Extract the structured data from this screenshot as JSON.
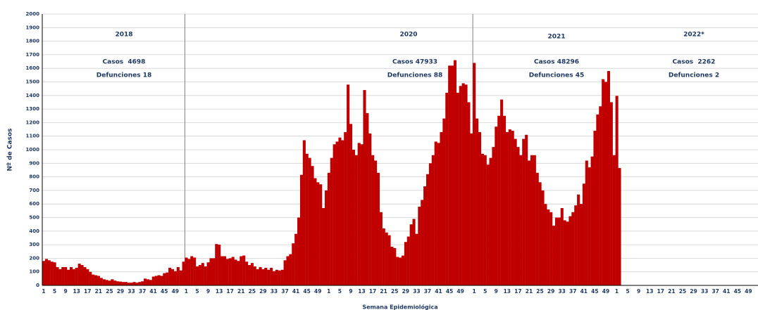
{
  "chart_data": {
    "type": "bar",
    "y_label": "Nº de Casos",
    "x_label": "Semana Epidemiológica",
    "color": "#c00000",
    "grid": true,
    "ylim": [
      0,
      2000
    ],
    "yticks": [
      0,
      100,
      200,
      300,
      400,
      500,
      600,
      700,
      800,
      900,
      1000,
      1100,
      1200,
      1300,
      1400,
      1500,
      1600,
      1700,
      1800,
      1900,
      2000
    ],
    "annotations": [
      "2018",
      "2020",
      "2021",
      "2022*",
      "Casos  4698",
      "Casos 47933",
      "Casos 48296",
      "Casos  2262",
      "Defunciones 18",
      "Defunciones 88",
      "Defunciones 45",
      "Defunciones 2"
    ],
    "categories": [
      "1",
      null,
      null,
      null,
      "5",
      null,
      null,
      null,
      "9",
      null,
      null,
      null,
      "13",
      null,
      null,
      null,
      "17",
      null,
      null,
      null,
      "21",
      null,
      null,
      null,
      "25",
      null,
      null,
      null,
      "29",
      null,
      null,
      null,
      "33",
      null,
      null,
      null,
      "37",
      null,
      null,
      null,
      "41",
      null,
      null,
      null,
      "45",
      null,
      null,
      null,
      "49",
      null,
      null,
      null,
      "1",
      null,
      null,
      null,
      "5",
      null,
      null,
      null,
      "9",
      null,
      null,
      null,
      "13",
      null,
      null,
      null,
      "17",
      null,
      null,
      null,
      "21",
      null,
      null,
      null,
      "25",
      null,
      null,
      null,
      "29",
      null,
      null,
      null,
      "33",
      null,
      null,
      null,
      "37",
      null,
      null,
      null,
      "41",
      null,
      null,
      null,
      "45",
      null,
      null,
      null,
      "49",
      null,
      null,
      null,
      "1",
      null,
      null,
      null,
      "5",
      null,
      null,
      null,
      "9",
      null,
      null,
      null,
      "13",
      null,
      null,
      null,
      "17",
      null,
      null,
      null,
      "21",
      null,
      null,
      null,
      "25",
      null,
      null,
      null,
      "29",
      null,
      null,
      null,
      "33",
      null,
      null,
      null,
      "37",
      null,
      null,
      null,
      "41",
      null,
      null,
      null,
      "45",
      null,
      null,
      null,
      "49",
      null,
      null,
      null,
      null,
      "1",
      null,
      null,
      null,
      "5",
      null,
      null,
      null,
      "9",
      null,
      null,
      null,
      "13",
      null,
      null,
      null,
      "17",
      null,
      null,
      null,
      "21",
      null,
      null,
      null,
      "25",
      null,
      null,
      null,
      "29",
      null,
      null,
      null,
      "33",
      null,
      null,
      null,
      "37",
      null,
      null,
      null,
      "41",
      null,
      null,
      null,
      "45",
      null,
      null,
      null,
      "49",
      null,
      null,
      null,
      "1",
      null,
      null,
      null,
      "5",
      null,
      null,
      null,
      "9",
      null,
      null,
      null,
      "13",
      null,
      null,
      null,
      "17",
      null,
      null,
      null,
      "21",
      null,
      null,
      null,
      "25",
      null,
      null,
      null,
      "29",
      null,
      null,
      null,
      "33",
      null,
      null,
      null,
      "37",
      null,
      null,
      null,
      "41",
      null,
      null,
      null,
      "45",
      null,
      null,
      null,
      "49",
      null,
      null,
      null
    ],
    "values": [
      180,
      195,
      185,
      175,
      170,
      135,
      120,
      135,
      135,
      115,
      135,
      120,
      130,
      160,
      150,
      135,
      120,
      100,
      80,
      75,
      70,
      55,
      45,
      40,
      35,
      45,
      35,
      30,
      28,
      25,
      25,
      20,
      20,
      25,
      20,
      25,
      30,
      50,
      45,
      40,
      65,
      70,
      75,
      70,
      90,
      95,
      130,
      120,
      105,
      135,
      110,
      175,
      205,
      195,
      215,
      205,
      140,
      150,
      165,
      140,
      170,
      200,
      200,
      305,
      300,
      215,
      215,
      195,
      200,
      210,
      190,
      180,
      215,
      220,
      175,
      150,
      165,
      140,
      120,
      135,
      120,
      130,
      115,
      130,
      105,
      115,
      110,
      115,
      185,
      215,
      230,
      310,
      380,
      500,
      815,
      1070,
      970,
      940,
      880,
      790,
      760,
      745,
      570,
      700,
      830,
      940,
      1040,
      1060,
      1090,
      1070,
      1130,
      1480,
      1190,
      1000,
      960,
      1050,
      1040,
      1440,
      1270,
      1120,
      960,
      920,
      830,
      540,
      420,
      390,
      370,
      285,
      275,
      210,
      205,
      220,
      320,
      360,
      450,
      490,
      380,
      580,
      630,
      730,
      820,
      900,
      960,
      1060,
      1050,
      1130,
      1230,
      1420,
      1620,
      1620,
      1660,
      1420,
      1470,
      1490,
      1480,
      1350,
      1120,
      1640,
      1230,
      1130,
      970,
      960,
      890,
      940,
      1020,
      1170,
      1250,
      1370,
      1250,
      1130,
      1150,
      1140,
      1080,
      1020,
      960,
      1080,
      1110,
      920,
      960,
      960,
      830,
      760,
      700,
      600,
      560,
      540,
      440,
      500,
      500,
      570,
      480,
      470,
      510,
      540,
      590,
      670,
      600,
      750,
      920,
      870,
      950,
      1140,
      1260,
      1320,
      1520,
      1500,
      1580,
      1350,
      960,
      1397,
      865,
      null,
      null,
      null,
      null,
      null,
      null,
      null,
      null,
      null,
      null,
      null,
      null,
      null,
      null,
      null,
      null,
      null,
      null,
      null,
      null,
      null,
      null,
      null,
      null,
      null,
      null,
      null,
      null,
      null,
      null,
      null,
      null,
      null,
      null,
      null,
      null,
      null,
      null,
      null,
      null,
      null,
      null,
      null,
      null,
      null,
      null,
      null,
      null,
      null,
      null
    ]
  }
}
